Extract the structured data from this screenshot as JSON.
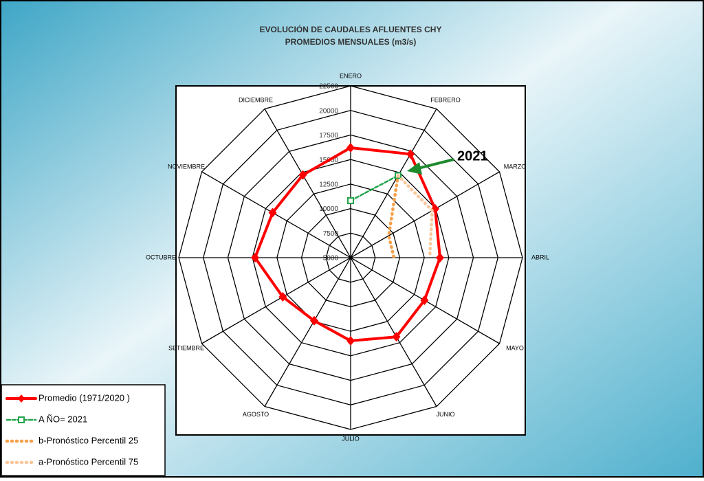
{
  "chart_data": {
    "type": "radar",
    "title": "EVOLUCIÓN DE CAUDALES AFLUENTES CHY",
    "subtitle": "PROMEDIOS MENSUALES (m3/s)",
    "categories": [
      "ENERO",
      "FEBRERO",
      "MARZO",
      "ABRIL",
      "MAYO",
      "JUNIO",
      "JULIO",
      "AGOSTO",
      "SETIEMBRE",
      "OCTUBRE",
      "NOVIEMBRE",
      "DICIEMBRE"
    ],
    "rlim": [
      5000,
      22500
    ],
    "rticks": [
      5000,
      7500,
      10000,
      12500,
      15000,
      17500,
      20000,
      22500
    ],
    "grid": true,
    "legend": "lower left",
    "annotation": "2021",
    "series": [
      {
        "name": "Promedio (1971/2020 )",
        "color": "#ff0000",
        "line_style": "solid",
        "marker": "diamond",
        "values": [
          16200,
          17180,
          14940,
          14100,
          13680,
          14310,
          13470,
          12420,
          12980,
          14730,
          14170,
          14730
        ]
      },
      {
        "name": "A ÑO= 2021",
        "color": "#22a34a",
        "line_style": "dashed",
        "marker": "square",
        "values": [
          10810,
          14660,
          null,
          null,
          null,
          null,
          null,
          null,
          null,
          null,
          null,
          null
        ]
      },
      {
        "name": "b-Pronóstico Percentil 25",
        "color": "#f5a04a",
        "line_style": "dotted",
        "marker": "none",
        "values": [
          null,
          14660,
          9480,
          9410,
          null,
          null,
          null,
          null,
          null,
          null,
          null,
          null
        ]
      },
      {
        "name": "a-Pronóstico Percentil 75",
        "color": "#f9c79a",
        "line_style": "dotted",
        "marker": "none",
        "values": [
          null,
          14660,
          14590,
          13050,
          null,
          null,
          null,
          null,
          null,
          null,
          null,
          null
        ]
      }
    ]
  }
}
